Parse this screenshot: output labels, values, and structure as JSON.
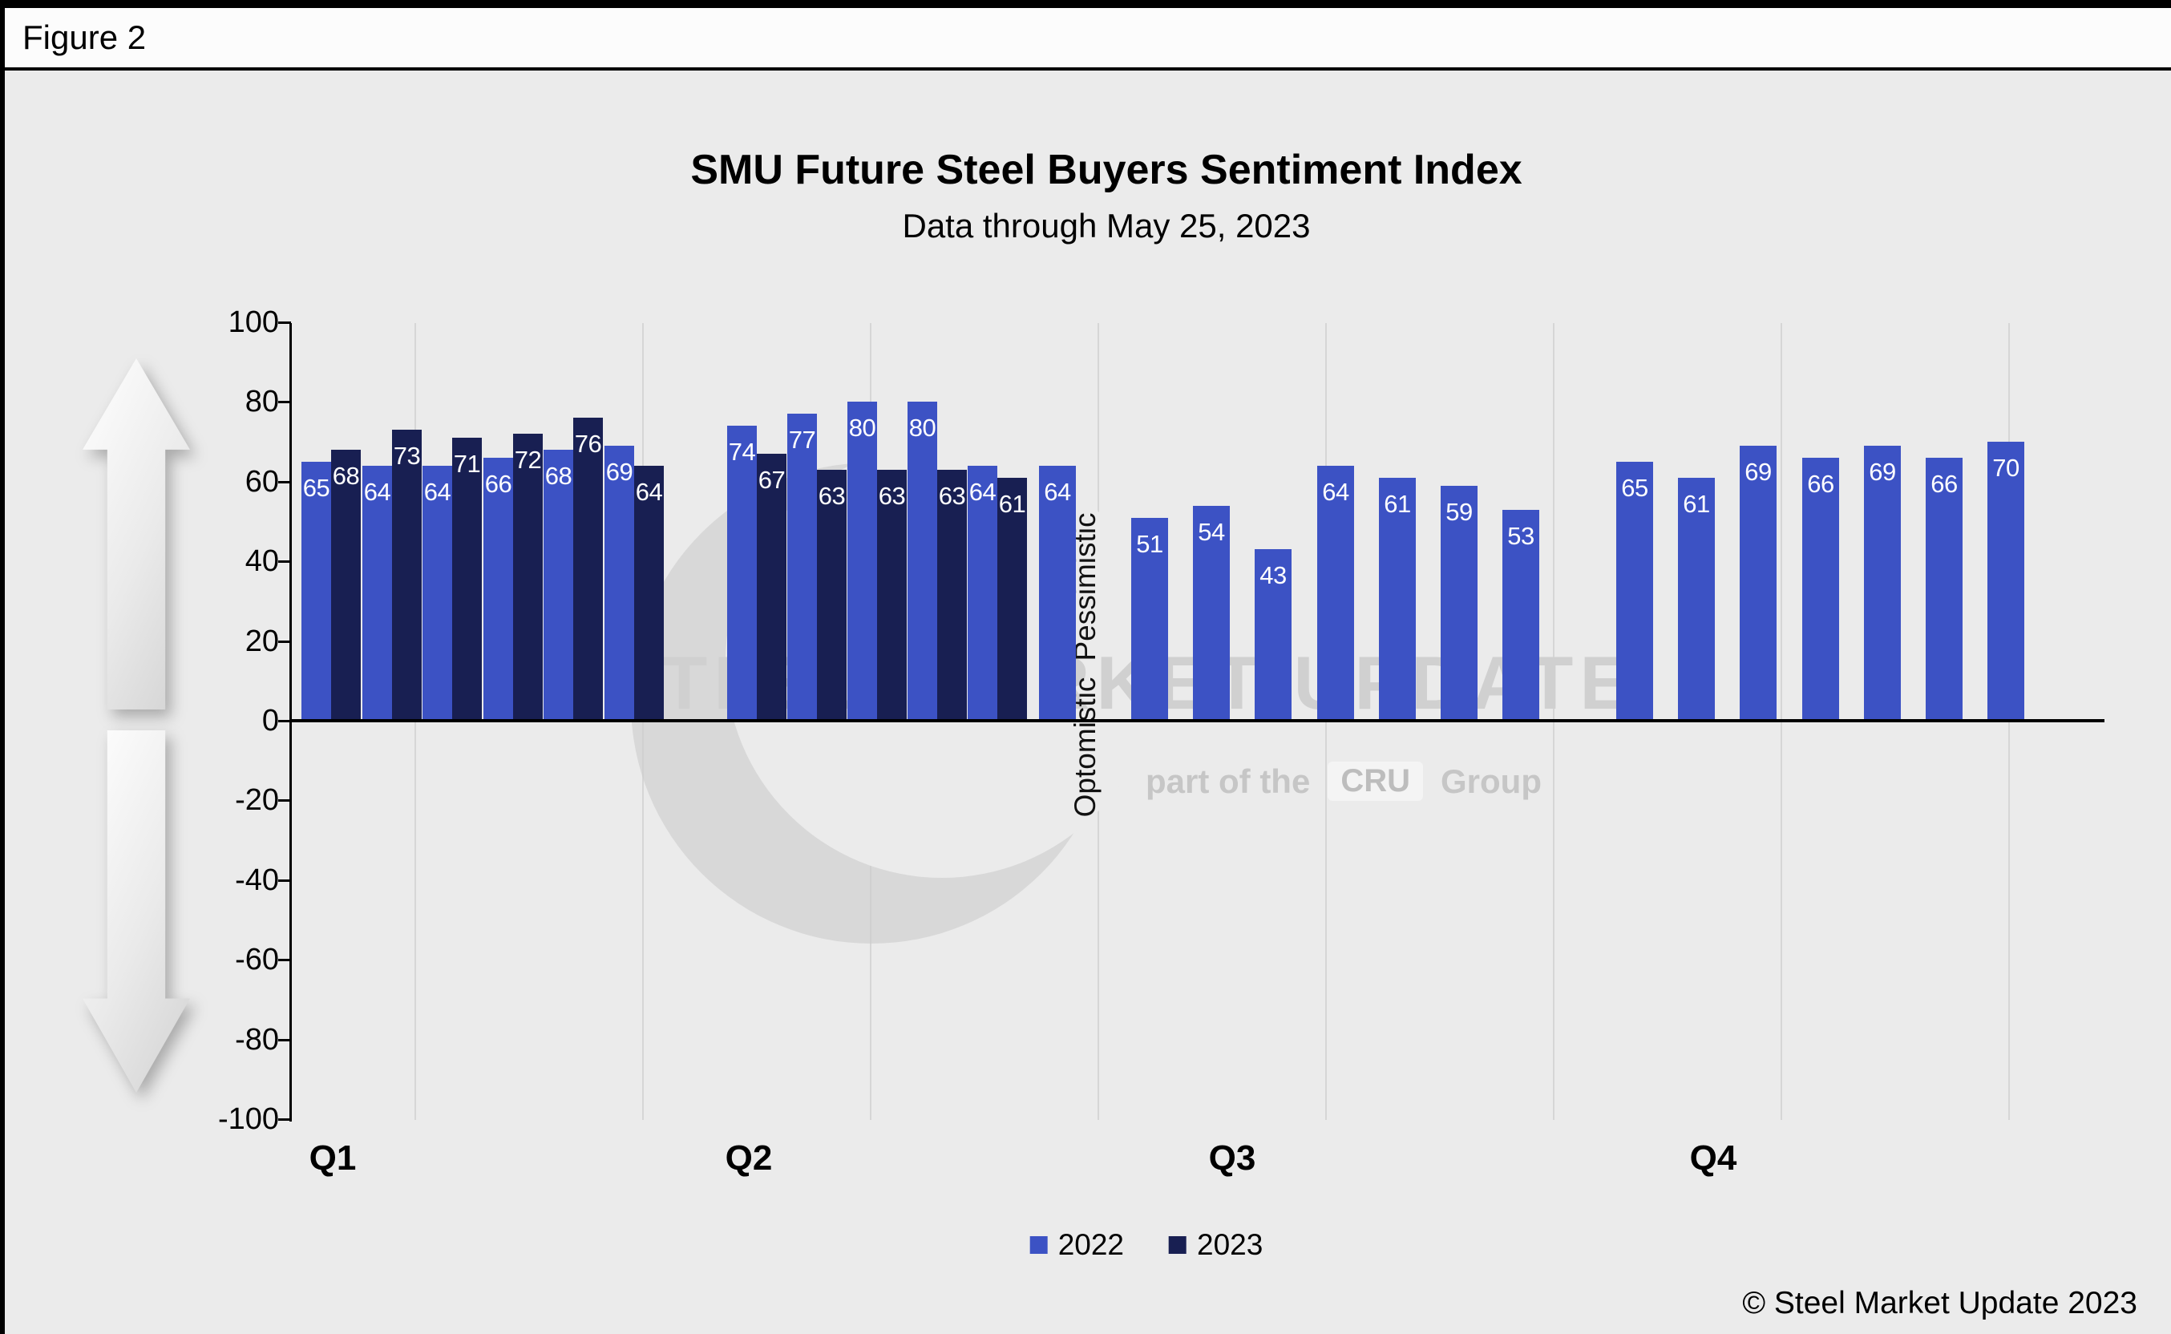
{
  "figure_label": "Figure 2",
  "footer": {
    "copyright": "© Steel Market Update 2023"
  },
  "watermark": {
    "line1": "STEEL MARKET UPDATE",
    "line2_prefix": "part of the",
    "logo": "CRU",
    "line2_suffix": "Group"
  },
  "chart_data": {
    "type": "bar",
    "title": "SMU Future Steel Buyers Sentiment Index",
    "subtitle": "Data through May 25, 2023",
    "ylim": [
      -100,
      100
    ],
    "ytick_step": 20,
    "grid": "vertical-faint",
    "legend_position": "bottom-center",
    "axis_annotations": {
      "positive": "Optomistic",
      "negative": "Pessimistic"
    },
    "categories": [
      "Q1",
      "Q2",
      "Q3",
      "Q4"
    ],
    "series": [
      {
        "name": "2022",
        "color": "#3c52c4",
        "values_by_quarter": [
          [
            65,
            64,
            64,
            66,
            68,
            69
          ],
          [
            74,
            77,
            80,
            80,
            64,
            64
          ],
          [
            51,
            54,
            43,
            64,
            61,
            59,
            53
          ],
          [
            65,
            61,
            69,
            66,
            69,
            66,
            70
          ]
        ]
      },
      {
        "name": "2023",
        "color": "#181f52",
        "values_by_quarter": [
          [
            68,
            73,
            71,
            72,
            76,
            64
          ],
          [
            67,
            63,
            63,
            63,
            61
          ],
          [],
          []
        ]
      }
    ]
  }
}
